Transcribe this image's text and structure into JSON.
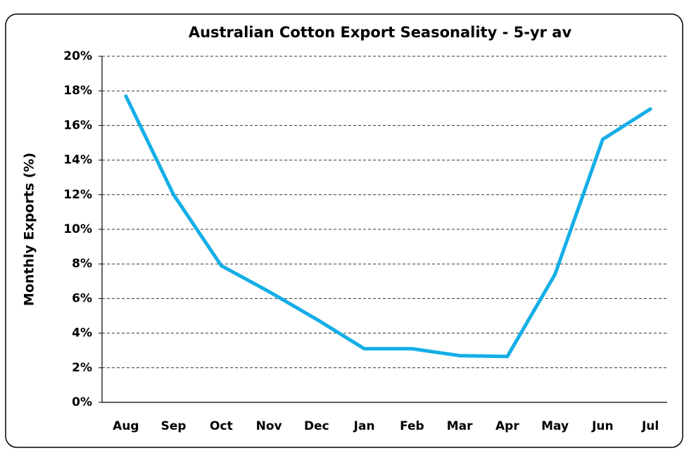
{
  "chart_data": {
    "type": "line",
    "title": "Australian Cotton Export Seasonality - 5-yr av",
    "y_label": "Monthly Exports (%)",
    "categories": [
      "Aug",
      "Sep",
      "Oct",
      "Nov",
      "Dec",
      "Jan",
      "Feb",
      "Mar",
      "Apr",
      "May",
      "Jun",
      "Jul"
    ],
    "series": [
      {
        "name": "Monthly Exports",
        "color": "#14aee6",
        "values": [
          17.7,
          12.0,
          7.9,
          6.4,
          4.8,
          3.1,
          3.1,
          2.7,
          2.65,
          7.4,
          15.2,
          16.95
        ]
      }
    ],
    "ylim": [
      0,
      20
    ],
    "yticks": [
      {
        "value": 0,
        "label": "0%"
      },
      {
        "value": 2,
        "label": "2%"
      },
      {
        "value": 4,
        "label": "4%"
      },
      {
        "value": 6,
        "label": "6%"
      },
      {
        "value": 8,
        "label": "8%"
      },
      {
        "value": 10,
        "label": "10%"
      },
      {
        "value": 12,
        "label": "12%"
      },
      {
        "value": 14,
        "label": "14%"
      },
      {
        "value": 16,
        "label": "16%"
      },
      {
        "value": 18,
        "label": "18%"
      },
      {
        "value": 20,
        "label": "20%"
      }
    ],
    "grid": true
  }
}
